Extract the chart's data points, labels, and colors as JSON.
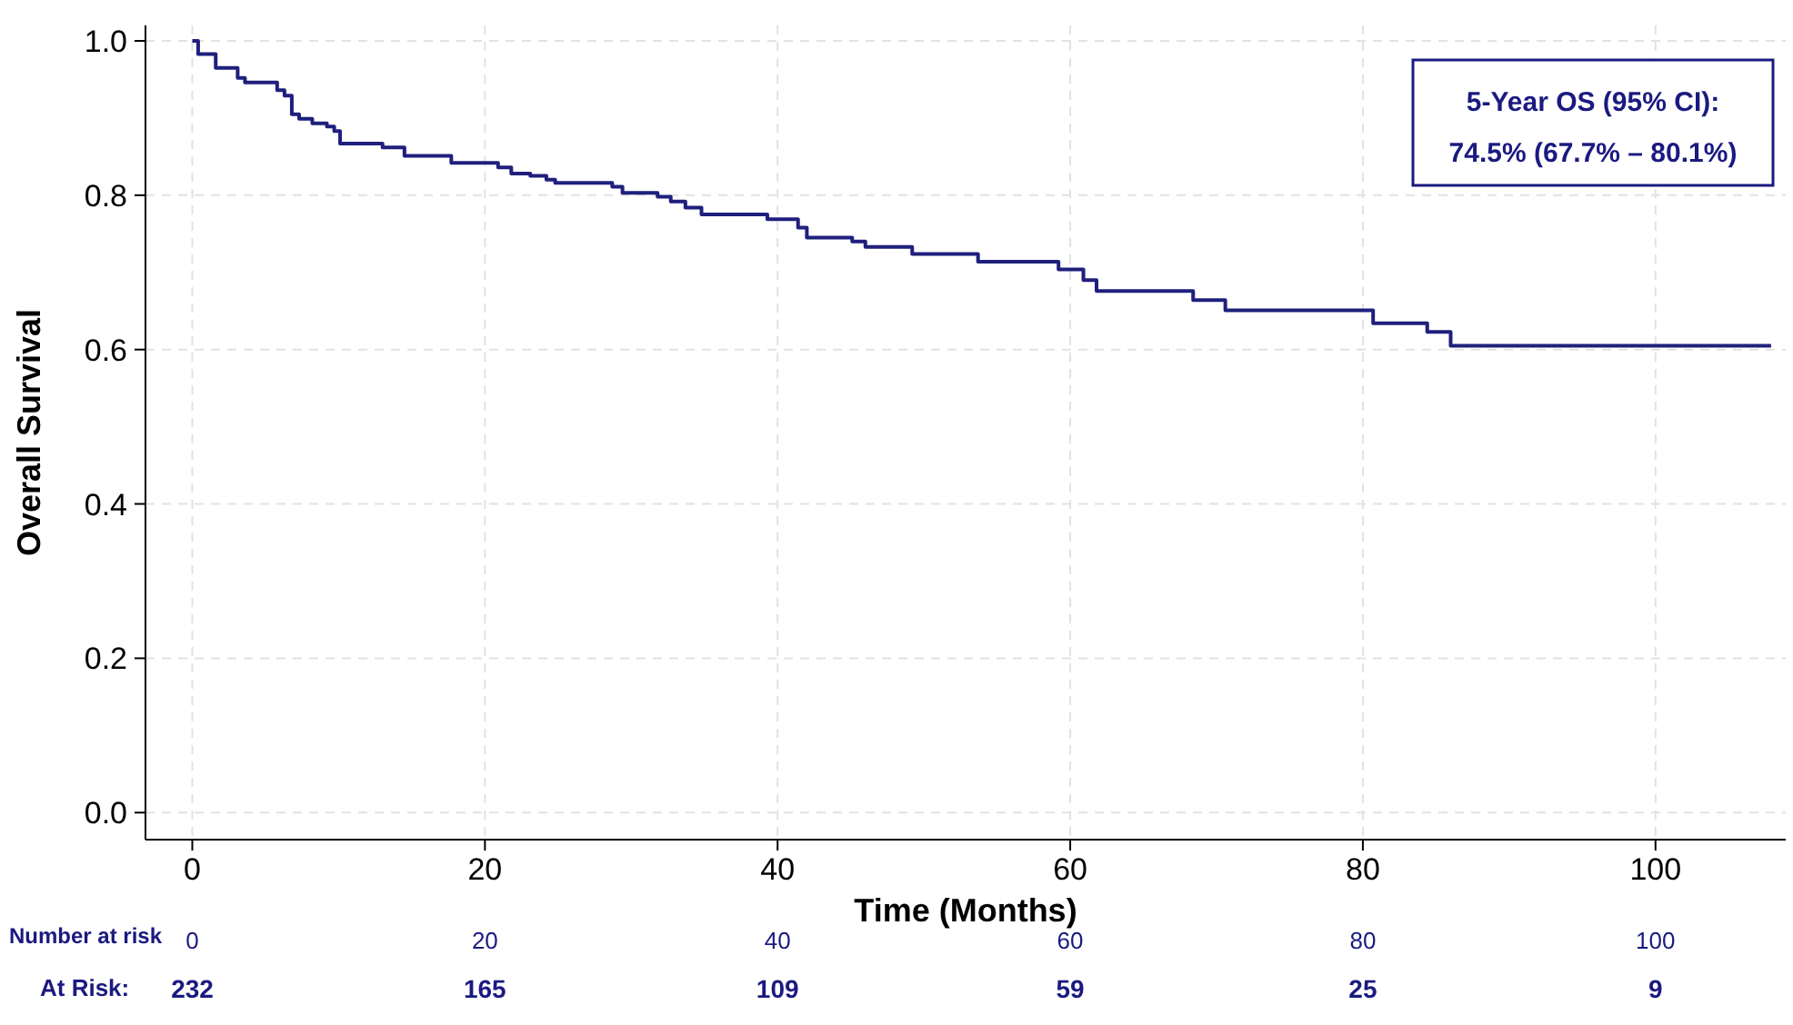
{
  "chart_data": {
    "type": "step",
    "xlabel": "Time (Months)",
    "ylabel": "Overall Survival",
    "xlim": [
      -3.2,
      108.9
    ],
    "ylim": [
      -0.035,
      1.02
    ],
    "xticks": [
      0,
      20,
      40,
      60,
      80,
      100
    ],
    "yticks": [
      {
        "value": 0,
        "label": "0.0"
      },
      {
        "value": 0.2,
        "label": "0.2"
      },
      {
        "value": 0.4,
        "label": "0.4"
      },
      {
        "value": 0.6,
        "label": "0.6"
      },
      {
        "value": 0.8,
        "label": "0.8"
      },
      {
        "value": 1,
        "label": "1.0"
      }
    ],
    "grid": true,
    "line_style": "solid",
    "series": [
      {
        "color": "#1f1f7d",
        "x": [
          0,
          0.4,
          1.6,
          3.1,
          3.6,
          5.8,
          6.3,
          6.8,
          7.3,
          8.2,
          9.2,
          9.7,
          10.1,
          13.0,
          14.5,
          17.7,
          20.9,
          21.8,
          23.1,
          24.2,
          24.8,
          28.7,
          29.4,
          31.8,
          32.7,
          33.7,
          34.8,
          39.3,
          41.4,
          42.0,
          45.1,
          46.0,
          49.2,
          53.7,
          59.2,
          60.9,
          61.8,
          68.4,
          70.6,
          80.7,
          84.4,
          86.0,
          107.9
        ],
        "values": [
          1.0,
          0.983,
          0.965,
          0.952,
          0.946,
          0.936,
          0.929,
          0.905,
          0.899,
          0.893,
          0.889,
          0.883,
          0.867,
          0.862,
          0.851,
          0.842,
          0.836,
          0.828,
          0.825,
          0.82,
          0.816,
          0.811,
          0.803,
          0.798,
          0.792,
          0.784,
          0.775,
          0.769,
          0.758,
          0.745,
          0.74,
          0.733,
          0.724,
          0.714,
          0.704,
          0.69,
          0.676,
          0.664,
          0.651,
          0.634,
          0.623,
          0.605,
          0.605
        ]
      }
    ],
    "annotations": [
      "5-Year OS (95% CI):",
      "74.5% (67.7% – 80.1%)",
      "Number at risk",
      "At Risk:",
      "0",
      "20",
      "40",
      "60",
      "80",
      "100",
      "232",
      "165",
      "109",
      "59",
      "25",
      "9"
    ]
  }
}
